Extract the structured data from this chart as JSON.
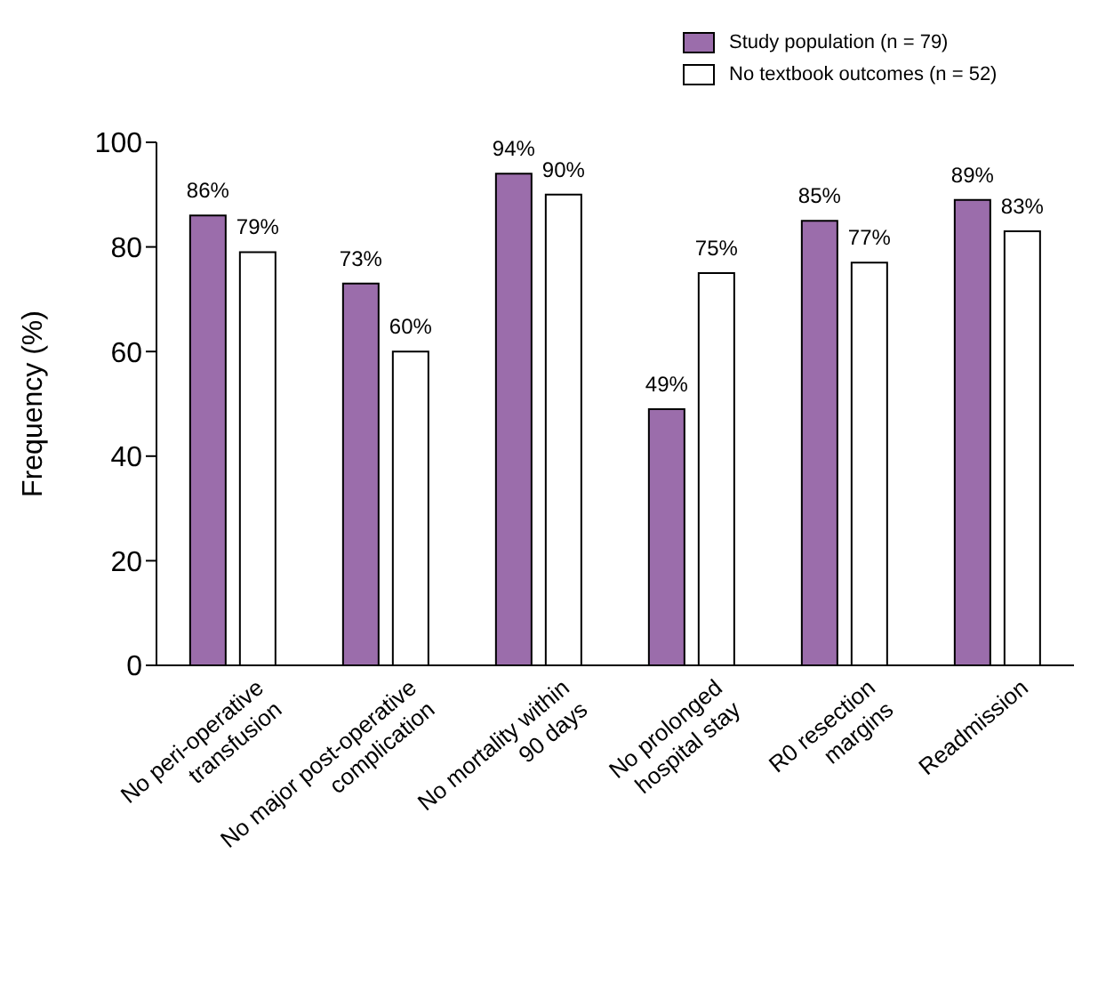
{
  "chart_data": {
    "type": "bar",
    "ylabel": "Frequency (%)",
    "categories": [
      "No peri-operative\ntransfusion",
      "No major post-operative\ncomplication",
      "No mortality within\n90 days",
      "No prolonged\nhospital stay",
      "R0 resection\nmargins",
      "Readmission"
    ],
    "series": [
      {
        "name": "Study population (n = 79)",
        "color": "#9b6dab",
        "values": [
          86,
          73,
          94,
          49,
          85,
          89
        ],
        "value_labels": [
          "86%",
          "73%",
          "94%",
          "49%",
          "85%",
          "89%"
        ]
      },
      {
        "name": "No textbook outcomes (n = 52)",
        "color": "#ffffff",
        "values": [
          79,
          60,
          90,
          75,
          77,
          83
        ],
        "value_labels": [
          "79%",
          "60%",
          "90%",
          "75%",
          "77%",
          "83%"
        ]
      }
    ],
    "ylim": [
      0,
      100
    ],
    "yticks": [
      0,
      20,
      40,
      60,
      80,
      100
    ],
    "legend": "top right",
    "grid": false
  }
}
